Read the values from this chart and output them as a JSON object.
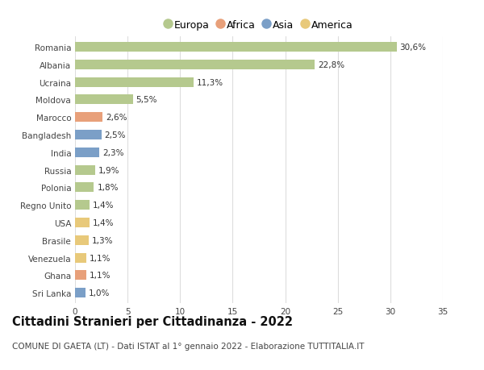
{
  "countries": [
    "Romania",
    "Albania",
    "Ucraina",
    "Moldova",
    "Marocco",
    "Bangladesh",
    "India",
    "Russia",
    "Polonia",
    "Regno Unito",
    "USA",
    "Brasile",
    "Venezuela",
    "Ghana",
    "Sri Lanka"
  ],
  "values": [
    30.6,
    22.8,
    11.3,
    5.5,
    2.6,
    2.5,
    2.3,
    1.9,
    1.8,
    1.4,
    1.4,
    1.3,
    1.1,
    1.1,
    1.0
  ],
  "labels": [
    "30,6%",
    "22,8%",
    "11,3%",
    "5,5%",
    "2,6%",
    "2,5%",
    "2,3%",
    "1,9%",
    "1,8%",
    "1,4%",
    "1,4%",
    "1,3%",
    "1,1%",
    "1,1%",
    "1,0%"
  ],
  "continent": [
    "Europa",
    "Europa",
    "Europa",
    "Europa",
    "Africa",
    "Asia",
    "Asia",
    "Europa",
    "Europa",
    "Europa",
    "America",
    "America",
    "America",
    "Africa",
    "Asia"
  ],
  "colors": {
    "Europa": "#b5c98e",
    "Africa": "#e8a07a",
    "Asia": "#7b9fc7",
    "America": "#e8c97a"
  },
  "legend_order": [
    "Europa",
    "Africa",
    "Asia",
    "America"
  ],
  "title": "Cittadini Stranieri per Cittadinanza - 2022",
  "subtitle": "COMUNE DI GAETA (LT) - Dati ISTAT al 1° gennaio 2022 - Elaborazione TUTTITALIA.IT",
  "xlim": [
    0,
    35
  ],
  "xticks": [
    0,
    5,
    10,
    15,
    20,
    25,
    30,
    35
  ],
  "background_color": "#ffffff",
  "grid_color": "#dddddd",
  "bar_height": 0.55,
  "label_fontsize": 7.5,
  "tick_fontsize": 7.5,
  "title_fontsize": 10.5,
  "subtitle_fontsize": 7.5
}
